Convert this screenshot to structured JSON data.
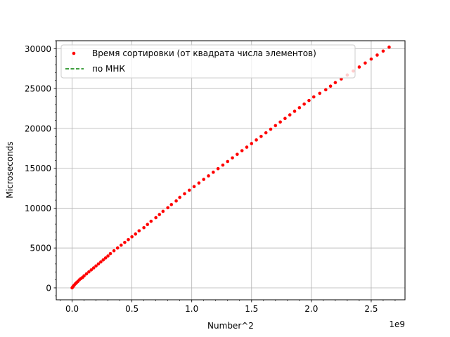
{
  "chart_data": {
    "type": "scatter",
    "title": "",
    "xlabel": "Number^2",
    "ylabel": "Microseconds",
    "x_offset_label": "1e9",
    "xlim": [
      -0.1325,
      2.7825
    ],
    "ylim": [
      -1500,
      31000
    ],
    "x_ticks": [
      0.0,
      0.5,
      1.0,
      1.5,
      2.0,
      2.5
    ],
    "x_tick_labels": [
      "0.0",
      "0.5",
      "1.0",
      "1.5",
      "2.0",
      "2.5"
    ],
    "y_ticks": [
      0,
      5000,
      10000,
      15000,
      20000,
      25000,
      30000
    ],
    "y_tick_labels": [
      "0",
      "5000",
      "10000",
      "15000",
      "20000",
      "25000",
      "30000"
    ],
    "grid": true,
    "legend_position": "upper-left",
    "legend": [
      {
        "label": "Время сортировки (от квадрата числа элементов)",
        "marker": "dot",
        "color": "#ff0000"
      },
      {
        "label": "по МНК",
        "marker": "dashed-line",
        "color": "#008000"
      }
    ],
    "series": [
      {
        "name": "Время сортировки (от квадрата числа элементов)",
        "kind": "scatter",
        "color": "#ff0000",
        "x": [
          0.0,
          0.005,
          0.01,
          0.018,
          0.027,
          0.037,
          0.048,
          0.06,
          0.073,
          0.087,
          0.1,
          0.12,
          0.14,
          0.16,
          0.18,
          0.2,
          0.22,
          0.24,
          0.26,
          0.28,
          0.3,
          0.32,
          0.35,
          0.38,
          0.41,
          0.44,
          0.47,
          0.5,
          0.53,
          0.56,
          0.6,
          0.63,
          0.66,
          0.7,
          0.73,
          0.76,
          0.8,
          0.83,
          0.87,
          0.9,
          0.94,
          0.98,
          1.02,
          1.06,
          1.1,
          1.14,
          1.18,
          1.22,
          1.26,
          1.3,
          1.34,
          1.38,
          1.42,
          1.46,
          1.5,
          1.54,
          1.58,
          1.62,
          1.66,
          1.7,
          1.74,
          1.78,
          1.82,
          1.86,
          1.9,
          1.94,
          1.98,
          2.02,
          2.07,
          2.12,
          2.16,
          2.2,
          2.25,
          2.3,
          2.35,
          2.4,
          2.45,
          2.5,
          2.55,
          2.6,
          2.65
        ],
        "y": [
          0,
          100,
          200,
          350,
          500,
          650,
          800,
          1000,
          1150,
          1300,
          1500,
          1750,
          2000,
          2250,
          2500,
          2750,
          3000,
          3250,
          3500,
          3750,
          4000,
          4300,
          4650,
          5000,
          5350,
          5700,
          6050,
          6400,
          6750,
          7150,
          7550,
          7950,
          8350,
          8800,
          9200,
          9600,
          10050,
          10450,
          10900,
          11350,
          11800,
          12250,
          12700,
          13150,
          13600,
          14050,
          14500,
          14950,
          15400,
          15850,
          16300,
          16750,
          17200,
          17650,
          18100,
          18550,
          19000,
          19450,
          19900,
          20350,
          20800,
          21250,
          21700,
          22150,
          22600,
          23050,
          23500,
          23950,
          24400,
          24850,
          25300,
          25750,
          26200,
          26700,
          27200,
          27700,
          28200,
          28700,
          29200,
          29700,
          30200
        ]
      },
      {
        "name": "по МНК",
        "kind": "line",
        "color": "#008000",
        "x": [],
        "y": []
      }
    ]
  }
}
